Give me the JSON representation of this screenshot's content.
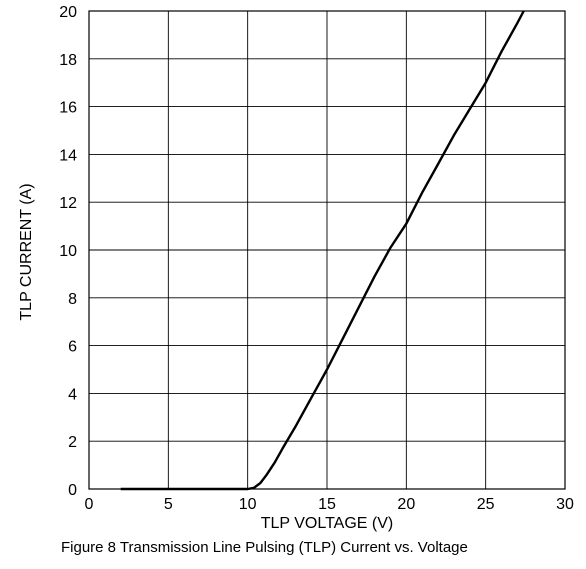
{
  "chart_data": {
    "type": "line",
    "title": "",
    "xlabel": "TLP VOLTAGE (V)",
    "ylabel": "TLP CURRENT (A)",
    "xlim": [
      0,
      30
    ],
    "ylim": [
      0,
      20
    ],
    "x_ticks": [
      "0",
      "5",
      "10",
      "15",
      "20",
      "25",
      "30"
    ],
    "y_ticks": [
      "0",
      "2",
      "4",
      "6",
      "8",
      "10",
      "12",
      "14",
      "16",
      "18",
      "20"
    ],
    "grid": true,
    "legend": "none",
    "line_color": "#000000",
    "series": [
      {
        "points": [
          [
            2.0,
            0.0
          ],
          [
            5.0,
            0.0
          ],
          [
            10.0,
            0.0
          ],
          [
            10.4,
            0.05
          ],
          [
            10.8,
            0.25
          ],
          [
            11.2,
            0.6
          ],
          [
            11.7,
            1.1
          ],
          [
            12.2,
            1.7
          ],
          [
            13.0,
            2.6
          ],
          [
            14.0,
            3.8
          ],
          [
            15.0,
            5.0
          ],
          [
            16.0,
            6.3
          ],
          [
            17.0,
            7.6
          ],
          [
            18.0,
            8.9
          ],
          [
            19.0,
            10.1
          ],
          [
            20.0,
            11.1
          ],
          [
            21.0,
            12.4
          ],
          [
            22.0,
            13.6
          ],
          [
            23.0,
            14.8
          ],
          [
            24.0,
            15.9
          ],
          [
            25.0,
            17.0
          ],
          [
            26.0,
            18.3
          ],
          [
            27.0,
            19.5
          ],
          [
            27.4,
            20.0
          ]
        ]
      }
    ]
  },
  "caption": "Figure 8 Transmission Line Pulsing (TLP) Current vs. Voltage"
}
